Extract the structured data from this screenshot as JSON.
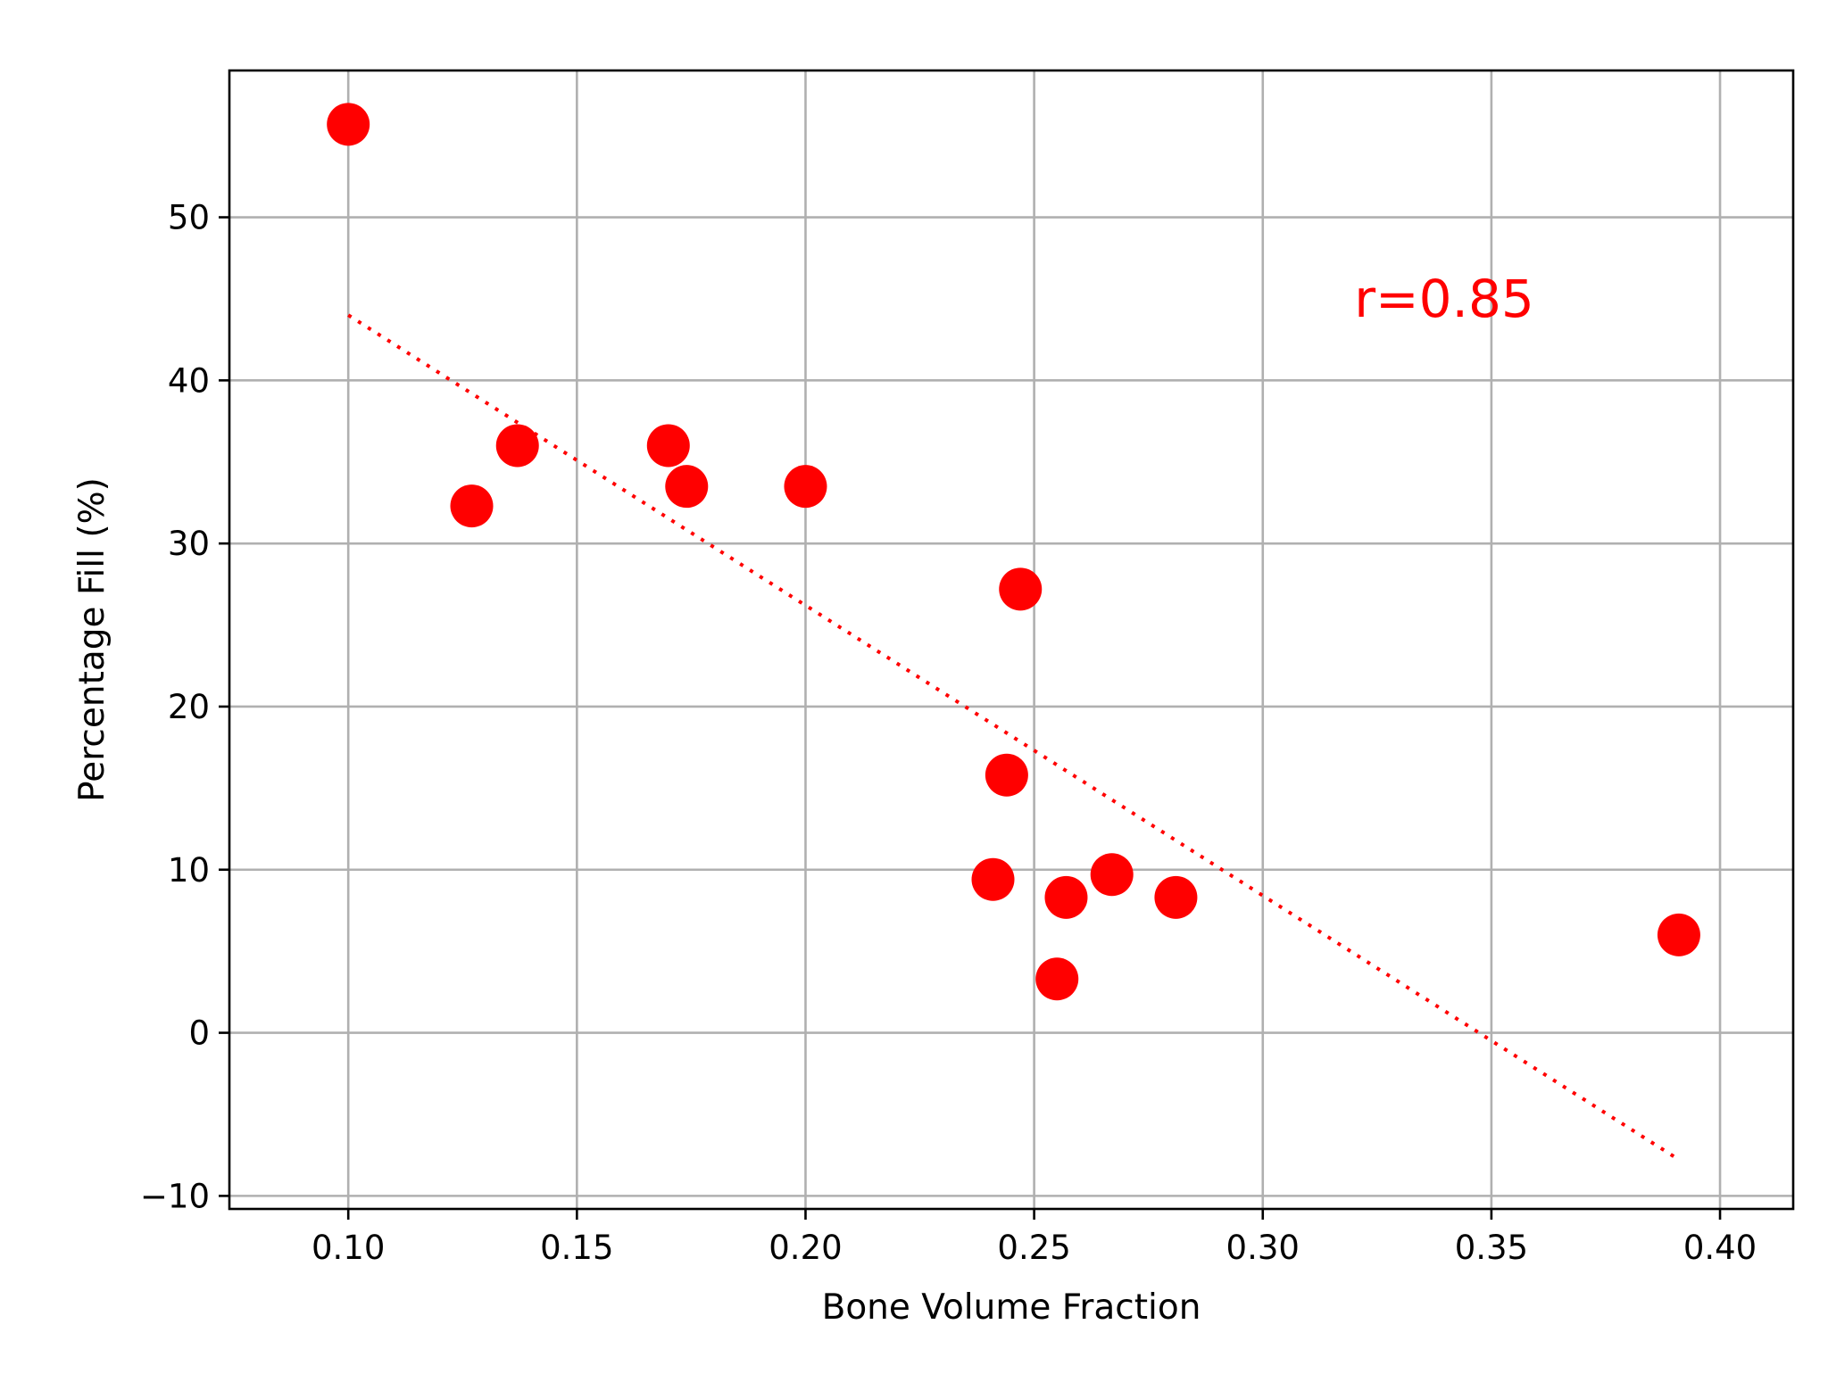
{
  "colors": {
    "marker": "#ff0000",
    "trendline": "#ff0000",
    "annotation": "#ff0000",
    "grid": "#b0b0b0",
    "axis": "#000000"
  },
  "chart_data": {
    "type": "scatter",
    "title": "",
    "xlabel": "Bone Volume Fraction",
    "ylabel": "Percentage Fill (%)",
    "xlim": [
      0.074,
      0.416
    ],
    "ylim": [
      -10.8,
      59.0
    ],
    "grid": true,
    "x_ticks": [
      0.1,
      0.15,
      0.2,
      0.25,
      0.3,
      0.35,
      0.4
    ],
    "x_tick_labels": [
      "0.10",
      "0.15",
      "0.20",
      "0.25",
      "0.30",
      "0.35",
      "0.40"
    ],
    "y_ticks": [
      -10,
      0,
      10,
      20,
      30,
      40,
      50
    ],
    "y_tick_labels": [
      "−10",
      "0",
      "10",
      "20",
      "30",
      "40",
      "50"
    ],
    "series": [
      {
        "marker": "circle",
        "color": "#ff0000",
        "points": [
          {
            "x": 0.1,
            "y": 55.7
          },
          {
            "x": 0.127,
            "y": 32.3
          },
          {
            "x": 0.137,
            "y": 36.0
          },
          {
            "x": 0.17,
            "y": 36.0
          },
          {
            "x": 0.174,
            "y": 33.5
          },
          {
            "x": 0.2,
            "y": 33.5
          },
          {
            "x": 0.247,
            "y": 27.2
          },
          {
            "x": 0.244,
            "y": 15.8
          },
          {
            "x": 0.241,
            "y": 9.4
          },
          {
            "x": 0.255,
            "y": 3.3
          },
          {
            "x": 0.257,
            "y": 8.3
          },
          {
            "x": 0.267,
            "y": 9.7
          },
          {
            "x": 0.281,
            "y": 8.3
          },
          {
            "x": 0.391,
            "y": 6.0
          }
        ]
      }
    ],
    "trendline": {
      "style": "dotted",
      "color": "#ff0000",
      "x_start": 0.1,
      "y_start": 44.0,
      "x_end": 0.39,
      "y_end": -7.6
    },
    "annotations": [
      {
        "text": "r=0.85",
        "x": 0.32,
        "y": 45.0,
        "color": "#ff0000"
      }
    ]
  }
}
